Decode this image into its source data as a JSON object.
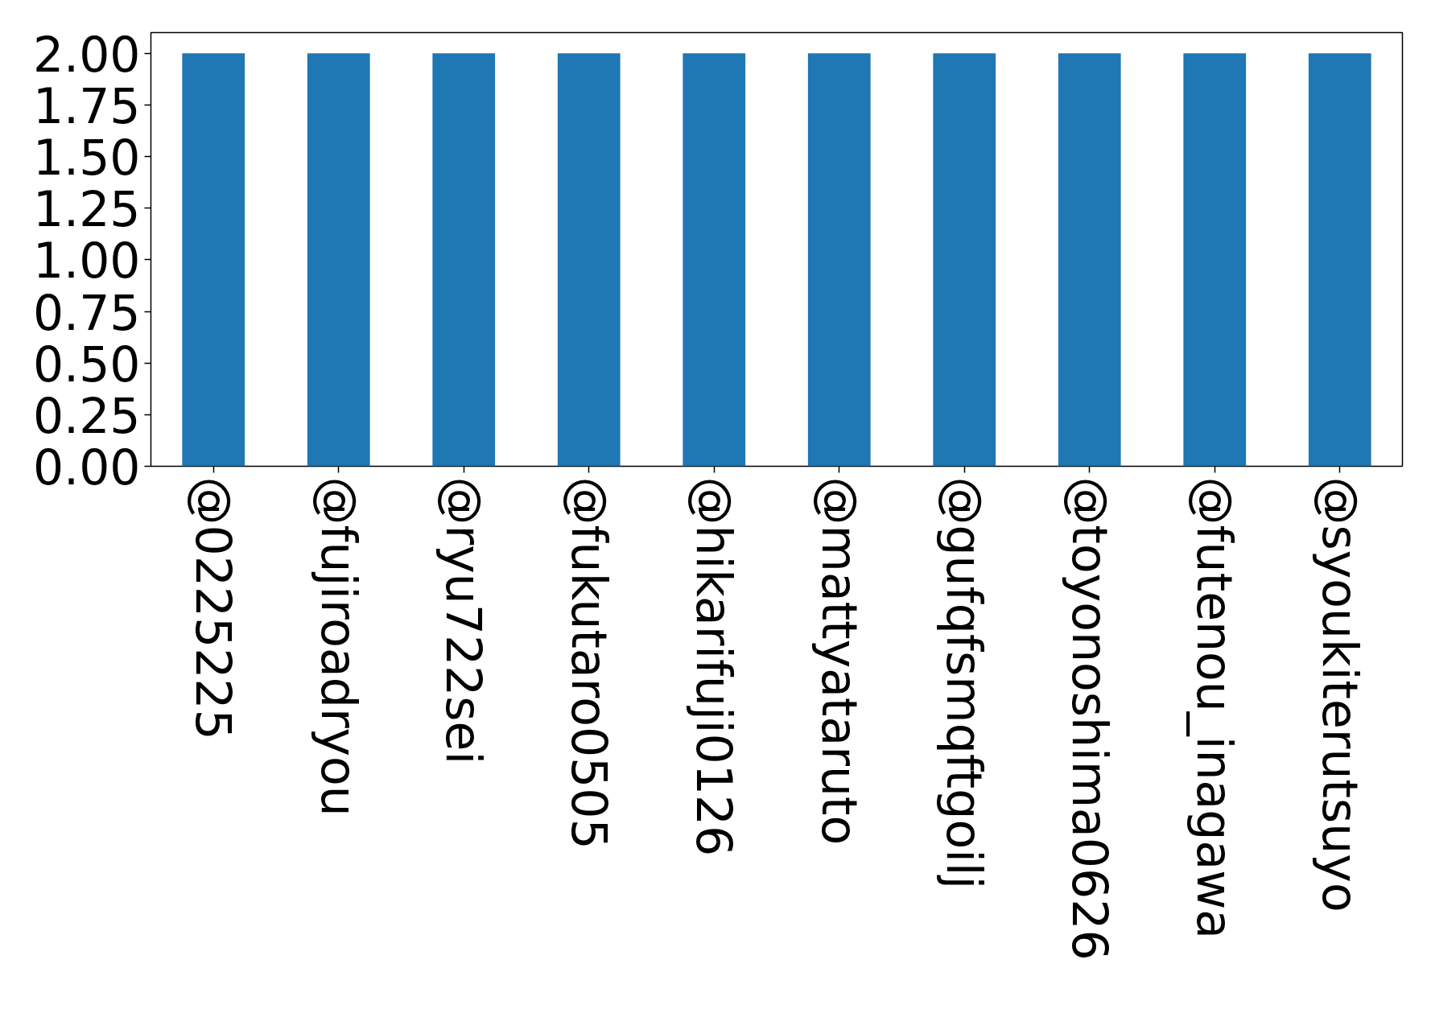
{
  "chart_data": {
    "type": "bar",
    "categories": [
      "@0225225",
      "@fujiroadryou",
      "@ryu722sei",
      "@fukutaro0505",
      "@hikarifuji0126",
      "@mattyataruto",
      "@gufqfsmqftgoilj",
      "@toyonoshima0626",
      "@futenou_inagawa",
      "@syoukiterutsuyo"
    ],
    "values": [
      2,
      2,
      2,
      2,
      2,
      2,
      2,
      2,
      2,
      2
    ],
    "color": "#1f77b4",
    "ylim": [
      0,
      2.1
    ],
    "yticks": [
      {
        "value": 0,
        "label": "0.00"
      },
      {
        "value": 0.25,
        "label": "0.25"
      },
      {
        "value": 0.5,
        "label": "0.50"
      },
      {
        "value": 0.75,
        "label": "0.75"
      },
      {
        "value": 1,
        "label": "1.00"
      },
      {
        "value": 1.25,
        "label": "1.25"
      },
      {
        "value": 1.5,
        "label": "1.50"
      },
      {
        "value": 1.75,
        "label": "1.75"
      },
      {
        "value": 2,
        "label": "2.00"
      }
    ],
    "grid": false
  }
}
